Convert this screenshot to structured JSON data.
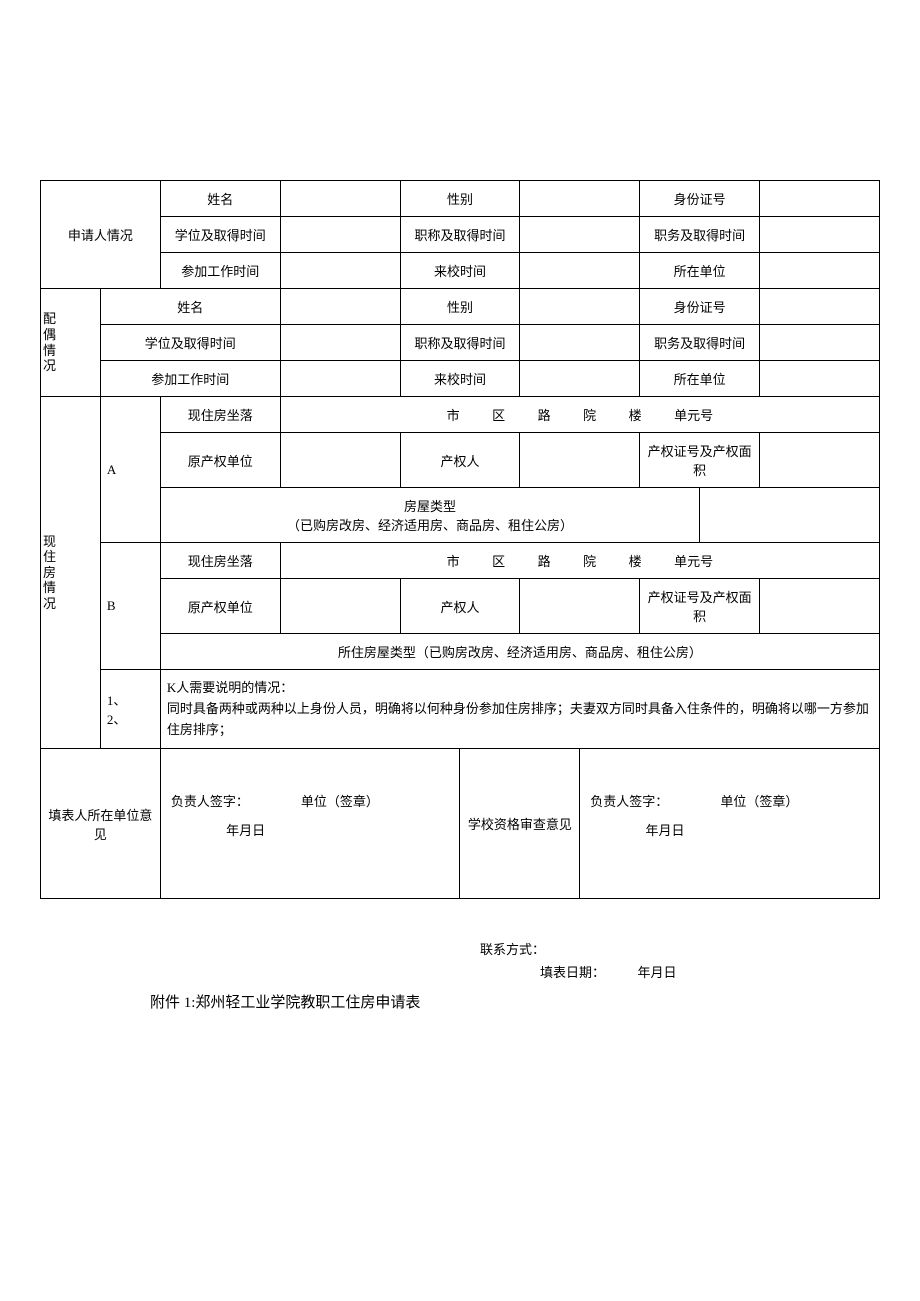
{
  "applicant": {
    "section": "申请人情况",
    "name_label": "姓名",
    "gender_label": "性别",
    "id_label": "身份证号",
    "degree_time_label": "学位及取得时间",
    "title_time_label": "职称及取得时间",
    "job_time_label": "职务及取得时间",
    "work_start_label": "参加工作时间",
    "come_school_label": "来校时间",
    "unit_label": "所在单位"
  },
  "spouse": {
    "section": "配偶情况",
    "name_label": "姓名",
    "gender_label": "性别",
    "id_label": "身份证号",
    "degree_time_label": "学位及取得时间",
    "title_time_label": "职称及取得时间",
    "job_time_label": "职务及取得时间",
    "work_start_label": "参加工作时间",
    "come_school_label": "来校时间",
    "unit_label": "所在单位"
  },
  "housing": {
    "section": "现住房情况",
    "row_a": "A",
    "row_b": "B",
    "location_label": "现住房坐落",
    "location_line": "市          区          路          院          楼          单元号",
    "orig_unit_label": "原产权单位",
    "owner_label": "产权人",
    "cert_area_label": "产权证号及产权面积",
    "house_type_a_line1": "房屋类型",
    "house_type_a_line2": "（已购房改房、经济适用房、商品房、租住公房）",
    "house_type_b": "所住房屋类型（已购房改房、经济适用房、商品房、租住公房）",
    "note_nums": "1、2、",
    "note_title": "K人需要说明的情况：",
    "note_body": "同时具备两种或两种以上身份人员，明确将以何种身份参加住房排序；夫妻双方同时具备入住条件的，明确将以哪一方参加住房排序；"
  },
  "opinion": {
    "filler_unit_label": "填表人所在单位意见",
    "school_review_label": "学校资格审查意见",
    "signer_label": "负责人签字：",
    "stamp_label": "单位（签章）",
    "date_label": "年月日"
  },
  "footer": {
    "contact_label": "联系方式：",
    "fill_date_label": "填表日期：",
    "fill_date_value": "年月日",
    "title": "附件 1:郑州轻工业学院教职工住房申请表"
  }
}
